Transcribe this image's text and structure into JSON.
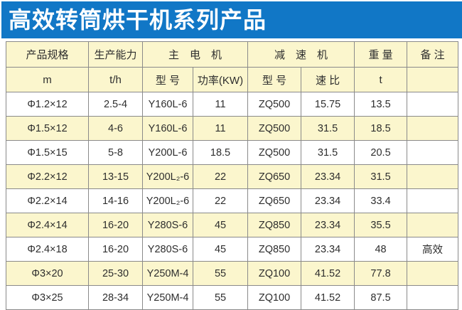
{
  "banner": {
    "title": "高效转筒烘干机系列产品"
  },
  "colors": {
    "banner_bg": "#1177c6",
    "banner_text": "#ffffff",
    "row_alt_bg": "#fbf6cd",
    "border": "#8a8a8a",
    "body_text": "#2e2e2e"
  },
  "table": {
    "group_header": [
      {
        "label": "产品规格",
        "colspan": 1
      },
      {
        "label": "生产能力",
        "colspan": 1
      },
      {
        "label": "主　电　机",
        "colspan": 2
      },
      {
        "label": "减　速　机",
        "colspan": 2
      },
      {
        "label": "重 量",
        "colspan": 1
      },
      {
        "label": "备 注",
        "colspan": 1
      }
    ],
    "unit_header": [
      "m",
      "t/h",
      "型 号",
      "功率(KW)",
      "型 号",
      "速 比",
      "t",
      ""
    ],
    "rows": [
      [
        "Φ1.2×12",
        "2.5-4",
        "Y160L-6",
        "11",
        "ZQ500",
        "15.75",
        "13.5",
        ""
      ],
      [
        "Φ1.5×12",
        "4-6",
        "Y160L-6",
        "11",
        "ZQ500",
        "31.5",
        "18.5",
        ""
      ],
      [
        "Φ1.5×15",
        "5-8",
        "Y200L-6",
        "18.5",
        "ZQ500",
        "31.5",
        "20.5",
        ""
      ],
      [
        "Φ2.2×12",
        "13-15",
        "Y200L₂-6",
        "22",
        "ZQ650",
        "23.34",
        "31.5",
        ""
      ],
      [
        "Φ2.2×14",
        "14-16",
        "Y200L₂-6",
        "22",
        "ZQ650",
        "23.34",
        "33.4",
        ""
      ],
      [
        "Φ2.4×14",
        "16-20",
        "Y280S-6",
        "45",
        "ZQ850",
        "23.34",
        "35.5",
        ""
      ],
      [
        "Φ2.4×18",
        "16-20",
        "Y280S-6",
        "45",
        "ZQ850",
        "23.34",
        "48",
        "高效"
      ],
      [
        "Φ3×20",
        "25-30",
        "Y250M-4",
        "55",
        "ZQ100",
        "41.52",
        "77.8",
        ""
      ],
      [
        "Φ3×25",
        "28-34",
        "Y250M-4",
        "55",
        "ZQ100",
        "41.52",
        "87.5",
        ""
      ]
    ]
  }
}
